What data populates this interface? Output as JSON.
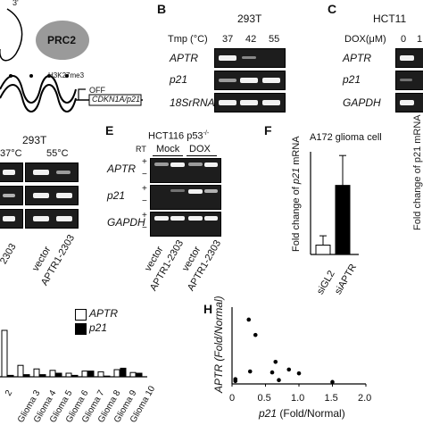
{
  "panelA": {
    "prc2": "PRC2",
    "h3k27": "H3K27me3",
    "off": "OFF",
    "gene": "CDKN1A/p21",
    "prime": "3'"
  },
  "panelB": {
    "letter": "B",
    "cell": "293T",
    "tmp_label": "Tmp (°C)",
    "temps": [
      "37",
      "42",
      "55"
    ],
    "rows": [
      "APTR",
      "p21",
      "18SrRNA"
    ]
  },
  "panelC": {
    "letter": "C",
    "cell": "HCT11",
    "dox_label": "DOX(μM)",
    "doses": [
      "0",
      "1"
    ],
    "rows": [
      "APTR",
      "p21",
      "GAPDH"
    ]
  },
  "panelD": {
    "cell": "293T",
    "temps": [
      "37°C",
      "55°C"
    ],
    "lanes": [
      "2303",
      "vector",
      "APTR1-2303"
    ]
  },
  "panelE": {
    "letter": "E",
    "cell": "HCT116 p53",
    "sup": "-/-",
    "rt": "RT",
    "groups": [
      "Mock",
      "DOX"
    ],
    "rows": [
      "APTR",
      "p21",
      "GAPDH"
    ],
    "signs": [
      "+",
      "−",
      "+",
      "−",
      "+",
      "−"
    ],
    "lanes": [
      "vector",
      "APTR1-2303",
      "vector",
      "APTR1-2303"
    ]
  },
  "panelF": {
    "letter": "F",
    "title": "A172 glioma cell",
    "ylabel_pre": "Fold change of ",
    "ylabel_it": "p21",
    "ylabel_post": " mRNA",
    "right_edge_text": "Fold change of p21 mRNA"
  },
  "panelG": {
    "legend": [
      {
        "name": "APTR",
        "color": "#ffffff"
      },
      {
        "name": "p21",
        "color": "#000000"
      }
    ],
    "categories": [
      "2",
      "Glioma 3",
      "Glioma 4",
      "Glioma 5",
      "Glioma 6",
      "Glioma 7",
      "Glioma 8",
      "Glioma 9",
      "Glioma 10"
    ]
  },
  "panelH": {
    "letter": "H",
    "ylabel": "APTR (Fold/Normal)",
    "xlabel_it": "p21",
    "xlabel_post": " (Fold/Normal)"
  },
  "chart_data": [
    {
      "type": "bar",
      "id": "F",
      "title": "A172 glioma cell",
      "categories": [
        "siGL2",
        "siAPTR"
      ],
      "values": [
        1.0,
        7.4
      ],
      "errors": [
        1.0,
        3.2
      ],
      "colors": [
        "#ffffff",
        "#000000"
      ],
      "ylabel": "Fold change of p21 mRNA",
      "ylim": [
        0,
        11
      ]
    },
    {
      "type": "bar",
      "id": "G",
      "categories": [
        "2",
        "Glioma 3",
        "Glioma 4",
        "Glioma 5",
        "Glioma 6",
        "Glioma 7",
        "Glioma 8",
        "Glioma 9",
        "Glioma 10"
      ],
      "series": [
        {
          "name": "APTR",
          "values": [
            6.5,
            1.6,
            1.1,
            0.9,
            0.5,
            0.8,
            0.7,
            1.0,
            0.6
          ]
        },
        {
          "name": "p21",
          "values": [
            0.2,
            0.3,
            0.3,
            0.5,
            0.2,
            0.8,
            0.1,
            1.2,
            0.5
          ]
        }
      ],
      "ymax": 7
    },
    {
      "type": "scatter",
      "id": "H",
      "x": [
        0.05,
        0.05,
        0.25,
        0.27,
        0.35,
        0.6,
        0.65,
        0.7,
        0.85,
        1.0,
        1.5
      ],
      "y": [
        0.5,
        0.3,
        6.7,
        1.3,
        5.1,
        1.2,
        2.3,
        0.4,
        1.5,
        1.1,
        0.2
      ],
      "xlim": [
        0,
        2.0
      ],
      "ylim": [
        0,
        8
      ],
      "xticks": [
        "0",
        "0.5",
        "1.0",
        "1.5",
        "2.0"
      ],
      "xlabel": "p21 (Fold/Normal)",
      "ylabel": "APTR (Fold/Normal)"
    }
  ]
}
